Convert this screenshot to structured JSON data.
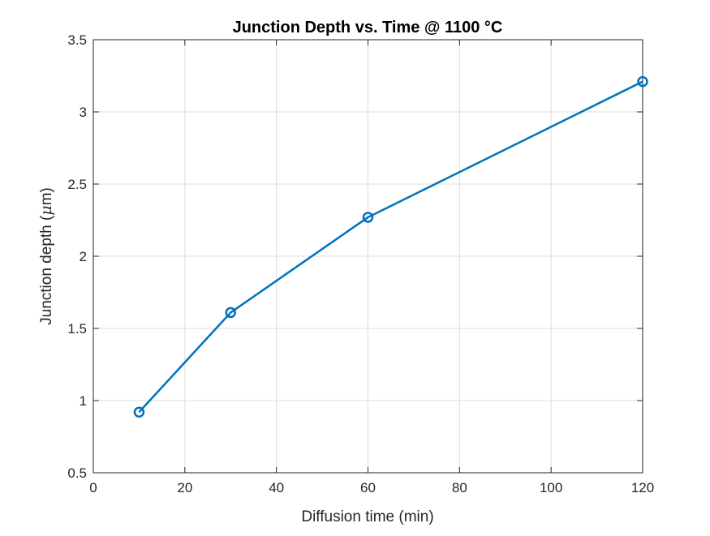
{
  "chart_data": {
    "type": "line",
    "title": "Junction Depth vs. Time @ 1100 °C",
    "xlabel": "Diffusion time (min)",
    "ylabel_prefix": "Junction depth (",
    "ylabel_symbol": "μ",
    "ylabel_suffix": "m)",
    "xlim": [
      0,
      120
    ],
    "ylim": [
      0.5,
      3.5
    ],
    "xticks": [
      0,
      20,
      40,
      60,
      80,
      100,
      120
    ],
    "yticks": [
      0.5,
      1,
      1.5,
      2,
      2.5,
      3,
      3.5
    ],
    "xtick_labels": [
      "0",
      "20",
      "40",
      "60",
      "80",
      "100",
      "120"
    ],
    "ytick_labels": [
      "0.5",
      "1",
      "1.5",
      "2",
      "2.5",
      "3",
      "3.5"
    ],
    "grid": true,
    "series": [
      {
        "x": [
          10,
          30,
          60,
          120
        ],
        "y": [
          0.92,
          1.61,
          2.27,
          3.21
        ],
        "color": "#0072BD",
        "marker": "circle"
      }
    ]
  }
}
